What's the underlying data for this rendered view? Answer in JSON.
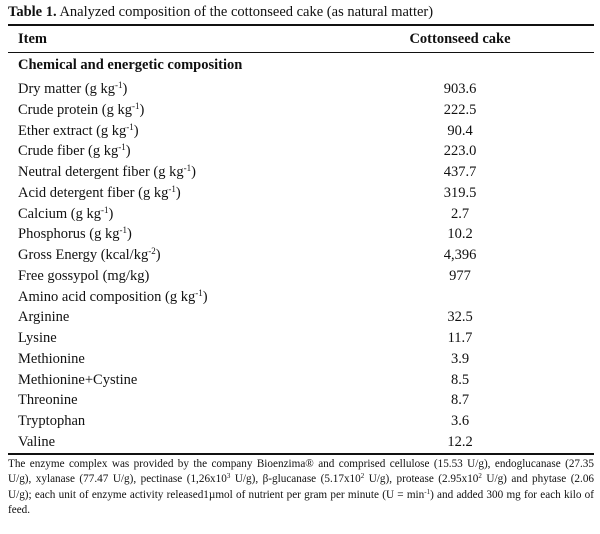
{
  "caption": {
    "label": "Table 1.",
    "text": " Analyzed composition of the cottonseed cake (as natural matter)"
  },
  "header": {
    "item": "Item",
    "value": "Cottonseed cake"
  },
  "section_title": "Chemical and energetic composition",
  "rows": [
    {
      "label": "Dry matter (g kg",
      "sup": "-1",
      "tail": ")",
      "value": "903.6"
    },
    {
      "label": "Crude protein (g kg",
      "sup": "-1",
      "tail": ")",
      "value": "222.5"
    },
    {
      "label": "Ether extract (g kg",
      "sup": "-1",
      "tail": ")",
      "value": "90.4"
    },
    {
      "label": "Crude fiber (g kg",
      "sup": "-1",
      "tail": ")",
      "value": "223.0"
    },
    {
      "label": "Neutral detergent fiber (g kg",
      "sup": "-1",
      "tail": ")",
      "value": "437.7"
    },
    {
      "label": "Acid detergent fiber (g kg",
      "sup": "-1",
      "tail": ")",
      "value": "319.5"
    },
    {
      "label": "Calcium (g kg",
      "sup": "-1",
      "tail": ")",
      "value": "2.7"
    },
    {
      "label": "Phosphorus (g kg",
      "sup": "-1",
      "tail": ")",
      "value": "10.2"
    },
    {
      "label": "Gross Energy (kcal/kg",
      "sup": "-2",
      "tail": ")",
      "value": "4,396"
    },
    {
      "label": "Free gossypol (mg/kg)",
      "sup": "",
      "tail": "",
      "value": "977"
    },
    {
      "label": "Amino acid composition (g kg",
      "sup": "-1",
      "tail": ")",
      "value": ""
    },
    {
      "label": "Arginine",
      "sup": "",
      "tail": "",
      "value": "32.5"
    },
    {
      "label": "Lysine",
      "sup": "",
      "tail": "",
      "value": "11.7"
    },
    {
      "label": "Methionine",
      "sup": "",
      "tail": "",
      "value": "3.9"
    },
    {
      "label": "Methionine+Cystine",
      "sup": "",
      "tail": "",
      "value": "8.5"
    },
    {
      "label": "Threonine",
      "sup": "",
      "tail": "",
      "value": "8.7"
    },
    {
      "label": "Tryptophan",
      "sup": "",
      "tail": "",
      "value": "3.6"
    },
    {
      "label": "Valine",
      "sup": "",
      "tail": "",
      "value": "12.2"
    }
  ],
  "footnote": {
    "part1": "The enzyme complex was provided by the company Bioenzima® and comprised cellulose (15.53 U/g), endoglucanase (27.35 U/g), xylanase (77.47 U/g), pectinase (1,26x10",
    "sup1": "3",
    "part2": " U/g), β-glucanase (5.17x10",
    "sup2": "2",
    "part3": " U/g), protease (2.95x10",
    "sup3": "2",
    "part4": " U/g) and phytase (2.06 U/g); each unit of enzyme activity released1µmol of nutrient per gram per minute (U = min",
    "sup4": "-1",
    "part5": ") and added 300 mg for each kilo of feed."
  }
}
